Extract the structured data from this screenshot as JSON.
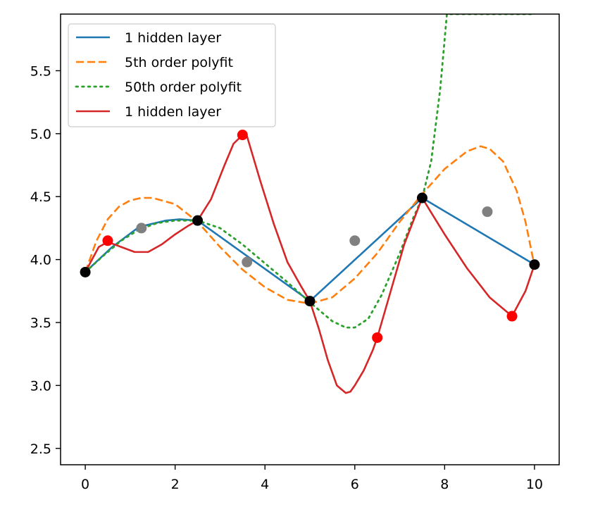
{
  "chart_data": {
    "type": "line",
    "title": "",
    "xlabel": "",
    "ylabel": "",
    "xlim": [
      -0.55,
      10.55
    ],
    "ylim": [
      2.37,
      5.95
    ],
    "x_ticks": [
      0,
      2,
      4,
      6,
      8,
      10
    ],
    "x_tick_labels": [
      "0",
      "2",
      "4",
      "6",
      "8",
      "10"
    ],
    "y_ticks": [
      2.5,
      3.0,
      3.5,
      4.0,
      4.5,
      5.0,
      5.5
    ],
    "y_tick_labels": [
      "2.5",
      "3.0",
      "3.5",
      "4.0",
      "4.5",
      "5.0",
      "5.5"
    ],
    "grid": false,
    "legend_position": "upper-left",
    "series": [
      {
        "name": "1 hidden layer",
        "color": "#1f77b4",
        "dash": "solid",
        "x": [
          0,
          0.6,
          1.2,
          1.8,
          2.1,
          2.5,
          5.0,
          7.5,
          10.0
        ],
        "y": [
          3.9,
          4.1,
          4.26,
          4.31,
          4.32,
          4.31,
          3.67,
          4.49,
          3.96
        ]
      },
      {
        "name": "5th order polyfit",
        "color": "#ff7f0e",
        "dash": "dashed",
        "x": [
          0,
          0.25,
          0.5,
          0.75,
          1.0,
          1.25,
          1.5,
          2.0,
          2.5,
          3.0,
          3.5,
          4.0,
          4.5,
          5.0,
          5.5,
          6.0,
          6.5,
          7.0,
          7.5,
          8.0,
          8.5,
          8.8,
          9.0,
          9.3,
          9.6,
          9.8,
          10.0
        ],
        "y": [
          3.9,
          4.15,
          4.32,
          4.42,
          4.47,
          4.49,
          4.49,
          4.44,
          4.3,
          4.1,
          3.92,
          3.78,
          3.68,
          3.65,
          3.7,
          3.85,
          4.05,
          4.3,
          4.52,
          4.72,
          4.86,
          4.9,
          4.88,
          4.78,
          4.55,
          4.3,
          3.95
        ]
      },
      {
        "name": "50th order polyfit",
        "color": "#2ca02c",
        "dash": "dotted",
        "x": [
          0,
          0.4,
          0.8,
          1.2,
          1.6,
          2.0,
          2.5,
          3.0,
          3.5,
          4.0,
          4.5,
          5.0,
          5.5,
          5.8,
          6.0,
          6.3,
          6.6,
          7.0,
          7.3,
          7.5,
          7.7,
          7.9,
          8.05,
          8.15,
          8.3,
          8.5,
          8.8,
          9.1,
          9.3,
          9.5,
          9.7,
          9.85,
          9.93,
          9.97
        ],
        "y": [
          3.9,
          4.03,
          4.15,
          4.24,
          4.29,
          4.31,
          4.31,
          4.25,
          4.12,
          3.97,
          3.82,
          3.66,
          3.51,
          3.46,
          3.46,
          3.53,
          3.72,
          4.05,
          4.33,
          4.49,
          4.78,
          5.35,
          5.95,
          5.95,
          5.95,
          5.95,
          5.95,
          5.95,
          5.95,
          5.95,
          5.95,
          5.95,
          5.95,
          5.95
        ]
      },
      {
        "name": "1 hidden layer",
        "color": "#d62728",
        "dash": "solid",
        "x": [
          0,
          0.3,
          0.5,
          0.8,
          1.1,
          1.4,
          1.7,
          2.0,
          2.3,
          2.5,
          2.8,
          3.1,
          3.3,
          3.5,
          3.6,
          3.9,
          4.2,
          4.5,
          4.8,
          5.0,
          5.2,
          5.4,
          5.6,
          5.8,
          5.9,
          6.0,
          6.2,
          6.4,
          6.5,
          6.8,
          7.1,
          7.5,
          8.0,
          8.5,
          9.0,
          9.5,
          9.8,
          10.0
        ],
        "y": [
          3.9,
          4.1,
          4.14,
          4.1,
          4.06,
          4.06,
          4.12,
          4.2,
          4.27,
          4.31,
          4.48,
          4.75,
          4.92,
          4.99,
          4.98,
          4.62,
          4.28,
          3.98,
          3.79,
          3.67,
          3.45,
          3.2,
          3.0,
          2.94,
          2.95,
          3.0,
          3.12,
          3.28,
          3.38,
          3.75,
          4.12,
          4.49,
          4.2,
          3.93,
          3.7,
          3.55,
          3.75,
          3.96
        ]
      }
    ],
    "scatter": [
      {
        "color": "#ff0000",
        "x": [
          0.5,
          3.5,
          6.5,
          9.5
        ],
        "y": [
          4.15,
          4.99,
          3.38,
          3.55
        ]
      },
      {
        "color": "#808080",
        "x": [
          1.25,
          3.6,
          6.0,
          8.95
        ],
        "y": [
          4.25,
          3.98,
          4.15,
          4.38
        ]
      },
      {
        "color": "#000000",
        "x": [
          0,
          2.5,
          5.0,
          7.5,
          10.0
        ],
        "y": [
          3.9,
          4.31,
          3.67,
          4.49,
          3.96
        ]
      }
    ]
  }
}
